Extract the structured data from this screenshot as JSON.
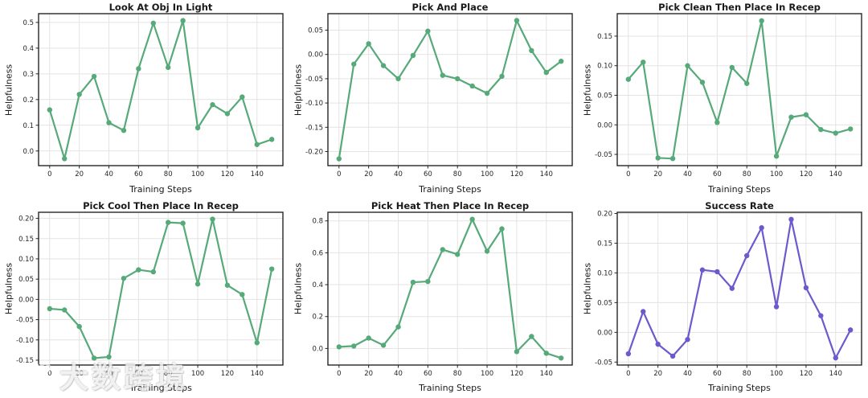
{
  "figure": {
    "background": "#ffffff",
    "grid_color": "#e3e3e3",
    "spine_color": "#262626",
    "rows": 2,
    "cols": 3
  },
  "watermark": {
    "text": "大数跨境",
    "logo": "k-double-ring-logo"
  },
  "chart_data": [
    {
      "type": "line",
      "title": "Look At Obj In Light",
      "xlabel": "Training Steps",
      "ylabel": "Helpfulness",
      "color": "#56a978",
      "marker": "circle",
      "grid": true,
      "legend": "none",
      "x": [
        0,
        10,
        20,
        30,
        40,
        50,
        60,
        70,
        80,
        90,
        100,
        110,
        120,
        130,
        140,
        150
      ],
      "values": [
        0.16,
        -0.03,
        0.22,
        0.29,
        0.11,
        0.08,
        0.32,
        0.497,
        0.325,
        0.507,
        0.09,
        0.18,
        0.145,
        0.21,
        0.025,
        0.045
      ],
      "xticks": [
        0,
        20,
        40,
        60,
        80,
        100,
        120,
        140
      ],
      "xlim": [
        -7.5,
        157.5
      ],
      "yticks": [
        0.0,
        0.1,
        0.2,
        0.3,
        0.4,
        0.5
      ],
      "ytick_decimals": 1,
      "ylim": [
        -0.057,
        0.534
      ]
    },
    {
      "type": "line",
      "title": "Pick And Place",
      "xlabel": "Training Steps",
      "ylabel": "Helpfulness",
      "color": "#56a978",
      "marker": "circle",
      "grid": true,
      "legend": "none",
      "x": [
        0,
        10,
        20,
        30,
        40,
        50,
        60,
        70,
        80,
        90,
        100,
        110,
        120,
        130,
        140,
        150
      ],
      "values": [
        -0.215,
        -0.02,
        0.022,
        -0.023,
        -0.05,
        -0.002,
        0.048,
        -0.043,
        -0.05,
        -0.065,
        -0.08,
        -0.045,
        0.07,
        0.008,
        -0.037,
        -0.014
      ],
      "xticks": [
        0,
        20,
        40,
        60,
        80,
        100,
        120,
        140
      ],
      "xlim": [
        -7.5,
        157.5
      ],
      "yticks": [
        -0.2,
        -0.15,
        -0.1,
        -0.05,
        0.0,
        0.05
      ],
      "ytick_decimals": 2,
      "ylim": [
        -0.229,
        0.084
      ]
    },
    {
      "type": "line",
      "title": "Pick Clean Then Place In Recep",
      "xlabel": "Training Steps",
      "ylabel": "Helpfulness",
      "color": "#56a978",
      "marker": "circle",
      "grid": true,
      "legend": "none",
      "x": [
        0,
        10,
        20,
        30,
        40,
        50,
        60,
        70,
        80,
        90,
        100,
        110,
        120,
        130,
        140,
        150
      ],
      "values": [
        0.077,
        0.106,
        -0.056,
        -0.057,
        0.1,
        0.072,
        0.004,
        0.097,
        0.07,
        0.176,
        -0.053,
        0.013,
        0.017,
        -0.008,
        -0.014,
        -0.007
      ],
      "xticks": [
        0,
        20,
        40,
        60,
        80,
        100,
        120,
        140
      ],
      "xlim": [
        -7.5,
        157.5
      ],
      "yticks": [
        -0.05,
        0.0,
        0.05,
        0.1,
        0.15
      ],
      "ytick_decimals": 2,
      "ylim": [
        -0.069,
        0.188
      ]
    },
    {
      "type": "line",
      "title": "Pick Cool Then Place In Recep",
      "xlabel": "Training Steps",
      "ylabel": "Helpfulness",
      "color": "#56a978",
      "marker": "circle",
      "grid": true,
      "legend": "none",
      "x": [
        0,
        10,
        20,
        30,
        40,
        50,
        60,
        70,
        80,
        90,
        100,
        110,
        120,
        130,
        140,
        150
      ],
      "values": [
        -0.023,
        -0.026,
        -0.067,
        -0.145,
        -0.142,
        0.052,
        0.073,
        0.068,
        0.19,
        0.188,
        0.038,
        0.198,
        0.035,
        0.012,
        -0.107,
        0.075
      ],
      "xticks": [
        0,
        20,
        40,
        60,
        80,
        100,
        120,
        140
      ],
      "xlim": [
        -7.5,
        157.5
      ],
      "yticks": [
        -0.15,
        -0.1,
        -0.05,
        0.0,
        0.05,
        0.1,
        0.15,
        0.2
      ],
      "ytick_decimals": 2,
      "ylim": [
        -0.162,
        0.215
      ]
    },
    {
      "type": "line",
      "title": "Pick Heat Then Place In Recep",
      "xlabel": "Training Steps",
      "ylabel": "Helpfulness",
      "color": "#56a978",
      "marker": "circle",
      "grid": true,
      "legend": "none",
      "x": [
        0,
        10,
        20,
        30,
        40,
        50,
        60,
        70,
        80,
        90,
        100,
        110,
        120,
        130,
        140,
        150
      ],
      "values": [
        0.01,
        0.015,
        0.065,
        0.02,
        0.135,
        0.415,
        0.42,
        0.62,
        0.59,
        0.81,
        0.61,
        0.75,
        -0.02,
        0.075,
        -0.03,
        -0.06
      ],
      "xticks": [
        0,
        20,
        40,
        60,
        80,
        100,
        120,
        140
      ],
      "xlim": [
        -7.5,
        157.5
      ],
      "yticks": [
        0.0,
        0.2,
        0.4,
        0.6,
        0.8
      ],
      "ytick_decimals": 1,
      "ylim": [
        -0.104,
        0.854
      ]
    },
    {
      "type": "line",
      "title": "Success Rate",
      "xlabel": "Training Steps",
      "ylabel": "Helpfulness",
      "color": "#6a5acd",
      "marker": "circle",
      "grid": true,
      "legend": "none",
      "x": [
        0,
        10,
        20,
        30,
        40,
        50,
        60,
        70,
        80,
        90,
        100,
        110,
        120,
        130,
        140,
        150
      ],
      "values": [
        -0.036,
        0.035,
        -0.02,
        -0.04,
        -0.012,
        0.105,
        0.102,
        0.074,
        0.129,
        0.176,
        0.043,
        0.19,
        0.075,
        0.028,
        -0.043,
        0.004
      ],
      "xticks": [
        0,
        20,
        40,
        60,
        80,
        100,
        120,
        140
      ],
      "xlim": [
        -7.5,
        157.5
      ],
      "yticks": [
        -0.05,
        0.0,
        0.05,
        0.1,
        0.15,
        0.2
      ],
      "ytick_decimals": 2,
      "ylim": [
        -0.055,
        0.202
      ]
    }
  ]
}
